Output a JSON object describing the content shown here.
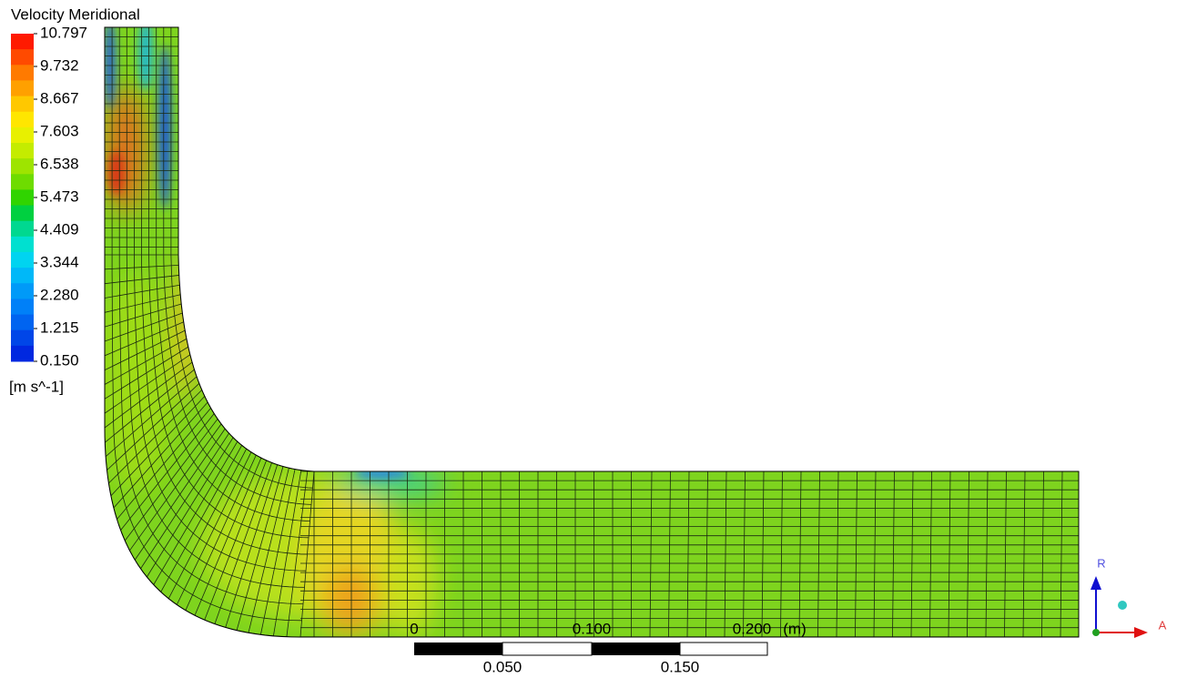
{
  "legend": {
    "title": "Velocity Meridional",
    "ticks": [
      "10.797",
      "9.732",
      "8.667",
      "7.603",
      "6.538",
      "5.473",
      "4.409",
      "3.344",
      "2.280",
      "1.215",
      "0.150"
    ],
    "unit": "[m s^-1]"
  },
  "scale_bar": {
    "top_labels": [
      "0",
      "0.100",
      "0.200"
    ],
    "unit": "(m)",
    "bottom_labels": [
      "0.050",
      "0.150"
    ]
  },
  "axes_triad": {
    "vertical": "R",
    "horizontal": "A"
  }
}
